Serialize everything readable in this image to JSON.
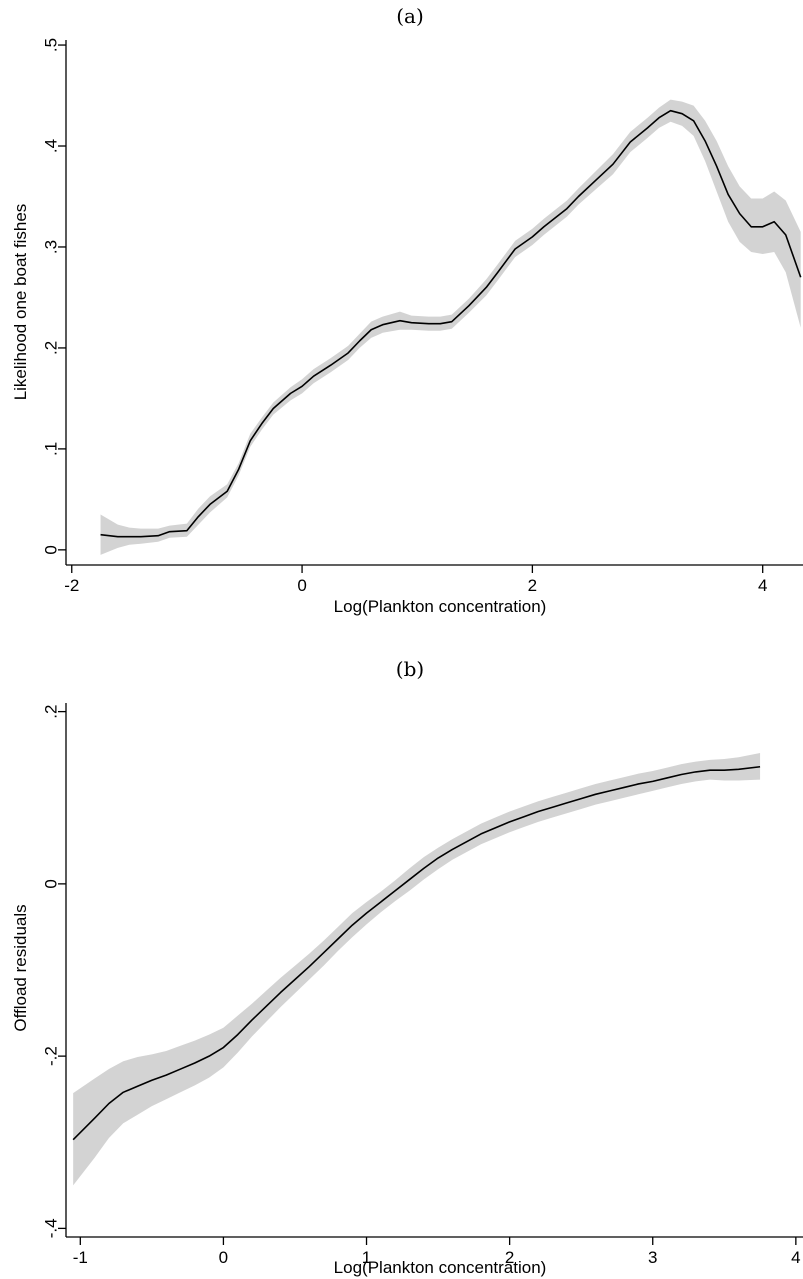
{
  "chart_data": [
    {
      "type": "line",
      "panel_label": "(a)",
      "xlabel": "Log(Plankton concentration)",
      "ylabel": "Likelihood one boat fishes",
      "xlim": [
        -2.05,
        4.35
      ],
      "ylim": [
        -0.015,
        0.505
      ],
      "x_ticks": [
        -2,
        0,
        2,
        4
      ],
      "x_tick_labels": [
        "-2",
        "0",
        "2",
        "4"
      ],
      "y_ticks": [
        0,
        0.1,
        0.2,
        0.3,
        0.4,
        0.5
      ],
      "y_tick_labels": [
        "0",
        ".1",
        ".2",
        ".3",
        ".4",
        ".5"
      ],
      "grid": false,
      "legend": "none",
      "colors": {
        "line": "#000000",
        "band": "#d3d3d3"
      },
      "series": [
        {
          "x": [
            -1.75,
            -1.6,
            -1.5,
            -1.4,
            -1.25,
            -1.15,
            -1.0,
            -0.9,
            -0.8,
            -0.65,
            -0.55,
            -0.45,
            -0.35,
            -0.25,
            -0.1,
            0.0,
            0.1,
            0.25,
            0.4,
            0.5,
            0.6,
            0.7,
            0.85,
            0.95,
            1.1,
            1.2,
            1.3,
            1.45,
            1.6,
            1.7,
            1.85,
            2.0,
            2.1,
            2.3,
            2.4,
            2.55,
            2.7,
            2.85,
            3.0,
            3.1,
            3.2,
            3.3,
            3.4,
            3.5,
            3.6,
            3.7,
            3.8,
            3.9,
            4.0,
            4.1,
            4.2,
            4.33
          ],
          "y": [
            0.015,
            0.013,
            0.013,
            0.013,
            0.014,
            0.018,
            0.019,
            0.033,
            0.045,
            0.058,
            0.08,
            0.108,
            0.125,
            0.14,
            0.155,
            0.162,
            0.172,
            0.183,
            0.195,
            0.207,
            0.218,
            0.223,
            0.227,
            0.225,
            0.224,
            0.224,
            0.226,
            0.242,
            0.26,
            0.275,
            0.298,
            0.31,
            0.32,
            0.338,
            0.35,
            0.366,
            0.382,
            0.404,
            0.418,
            0.428,
            0.435,
            0.432,
            0.425,
            0.405,
            0.38,
            0.352,
            0.333,
            0.32,
            0.32,
            0.325,
            0.312,
            0.27
          ],
          "ci_lower": [
            -0.005,
            0.002,
            0.005,
            0.006,
            0.008,
            0.012,
            0.013,
            0.025,
            0.037,
            0.052,
            0.074,
            0.102,
            0.119,
            0.134,
            0.148,
            0.155,
            0.165,
            0.176,
            0.188,
            0.2,
            0.21,
            0.215,
            0.218,
            0.218,
            0.217,
            0.217,
            0.219,
            0.235,
            0.252,
            0.267,
            0.29,
            0.302,
            0.312,
            0.33,
            0.342,
            0.357,
            0.372,
            0.394,
            0.408,
            0.418,
            0.424,
            0.42,
            0.41,
            0.385,
            0.355,
            0.325,
            0.305,
            0.295,
            0.293,
            0.295,
            0.275,
            0.22
          ],
          "ci_upper": [
            0.035,
            0.025,
            0.022,
            0.021,
            0.021,
            0.024,
            0.026,
            0.041,
            0.053,
            0.065,
            0.086,
            0.115,
            0.131,
            0.146,
            0.161,
            0.169,
            0.179,
            0.19,
            0.202,
            0.214,
            0.226,
            0.231,
            0.236,
            0.232,
            0.231,
            0.231,
            0.233,
            0.249,
            0.268,
            0.283,
            0.306,
            0.318,
            0.328,
            0.346,
            0.358,
            0.375,
            0.392,
            0.414,
            0.428,
            0.438,
            0.446,
            0.444,
            0.44,
            0.425,
            0.405,
            0.38,
            0.36,
            0.348,
            0.348,
            0.355,
            0.346,
            0.315
          ]
        }
      ]
    },
    {
      "type": "line",
      "panel_label": "(b)",
      "xlabel": "Log(Plankton concentration)",
      "ylabel": "Offload residuals",
      "xlim": [
        -1.1,
        4.05
      ],
      "ylim": [
        -0.41,
        0.21
      ],
      "x_ticks": [
        -1,
        0,
        1,
        2,
        3,
        4
      ],
      "x_tick_labels": [
        "-1",
        "0",
        "1",
        "2",
        "3",
        "4"
      ],
      "y_ticks": [
        -0.4,
        -0.2,
        0,
        0.2
      ],
      "y_tick_labels": [
        "-.4",
        "-.2",
        "0",
        ".2"
      ],
      "grid": false,
      "legend": "none",
      "colors": {
        "line": "#000000",
        "band": "#d3d3d3"
      },
      "series": [
        {
          "x": [
            -1.05,
            -0.9,
            -0.8,
            -0.7,
            -0.6,
            -0.5,
            -0.4,
            -0.3,
            -0.2,
            -0.1,
            0.0,
            0.1,
            0.2,
            0.3,
            0.4,
            0.5,
            0.6,
            0.7,
            0.8,
            0.9,
            1.0,
            1.1,
            1.2,
            1.3,
            1.4,
            1.5,
            1.6,
            1.7,
            1.8,
            1.9,
            2.0,
            2.1,
            2.2,
            2.3,
            2.4,
            2.5,
            2.6,
            2.7,
            2.8,
            2.9,
            3.0,
            3.1,
            3.2,
            3.3,
            3.4,
            3.5,
            3.6,
            3.75
          ],
          "y": [
            -0.297,
            -0.272,
            -0.255,
            -0.242,
            -0.235,
            -0.228,
            -0.222,
            -0.215,
            -0.208,
            -0.2,
            -0.19,
            -0.175,
            -0.158,
            -0.142,
            -0.126,
            -0.111,
            -0.096,
            -0.08,
            -0.064,
            -0.048,
            -0.034,
            -0.021,
            -0.008,
            0.005,
            0.018,
            0.03,
            0.04,
            0.049,
            0.058,
            0.065,
            0.072,
            0.078,
            0.084,
            0.089,
            0.094,
            0.099,
            0.104,
            0.108,
            0.112,
            0.116,
            0.119,
            0.123,
            0.127,
            0.13,
            0.132,
            0.132,
            0.133,
            0.136
          ],
          "ci_lower": [
            -0.35,
            -0.318,
            -0.295,
            -0.278,
            -0.268,
            -0.258,
            -0.25,
            -0.242,
            -0.234,
            -0.225,
            -0.213,
            -0.196,
            -0.177,
            -0.16,
            -0.143,
            -0.127,
            -0.111,
            -0.095,
            -0.078,
            -0.062,
            -0.047,
            -0.033,
            -0.02,
            -0.008,
            0.005,
            0.017,
            0.028,
            0.037,
            0.046,
            0.053,
            0.06,
            0.066,
            0.072,
            0.077,
            0.082,
            0.087,
            0.092,
            0.096,
            0.1,
            0.104,
            0.108,
            0.112,
            0.116,
            0.119,
            0.121,
            0.12,
            0.12,
            0.121
          ],
          "ci_upper": [
            -0.243,
            -0.226,
            -0.215,
            -0.206,
            -0.201,
            -0.198,
            -0.194,
            -0.188,
            -0.182,
            -0.175,
            -0.167,
            -0.153,
            -0.139,
            -0.124,
            -0.109,
            -0.095,
            -0.081,
            -0.066,
            -0.05,
            -0.034,
            -0.021,
            -0.009,
            0.004,
            0.018,
            0.031,
            0.042,
            0.052,
            0.061,
            0.07,
            0.077,
            0.084,
            0.09,
            0.096,
            0.101,
            0.106,
            0.111,
            0.116,
            0.12,
            0.124,
            0.128,
            0.131,
            0.135,
            0.139,
            0.142,
            0.144,
            0.145,
            0.147,
            0.152
          ]
        }
      ]
    }
  ]
}
